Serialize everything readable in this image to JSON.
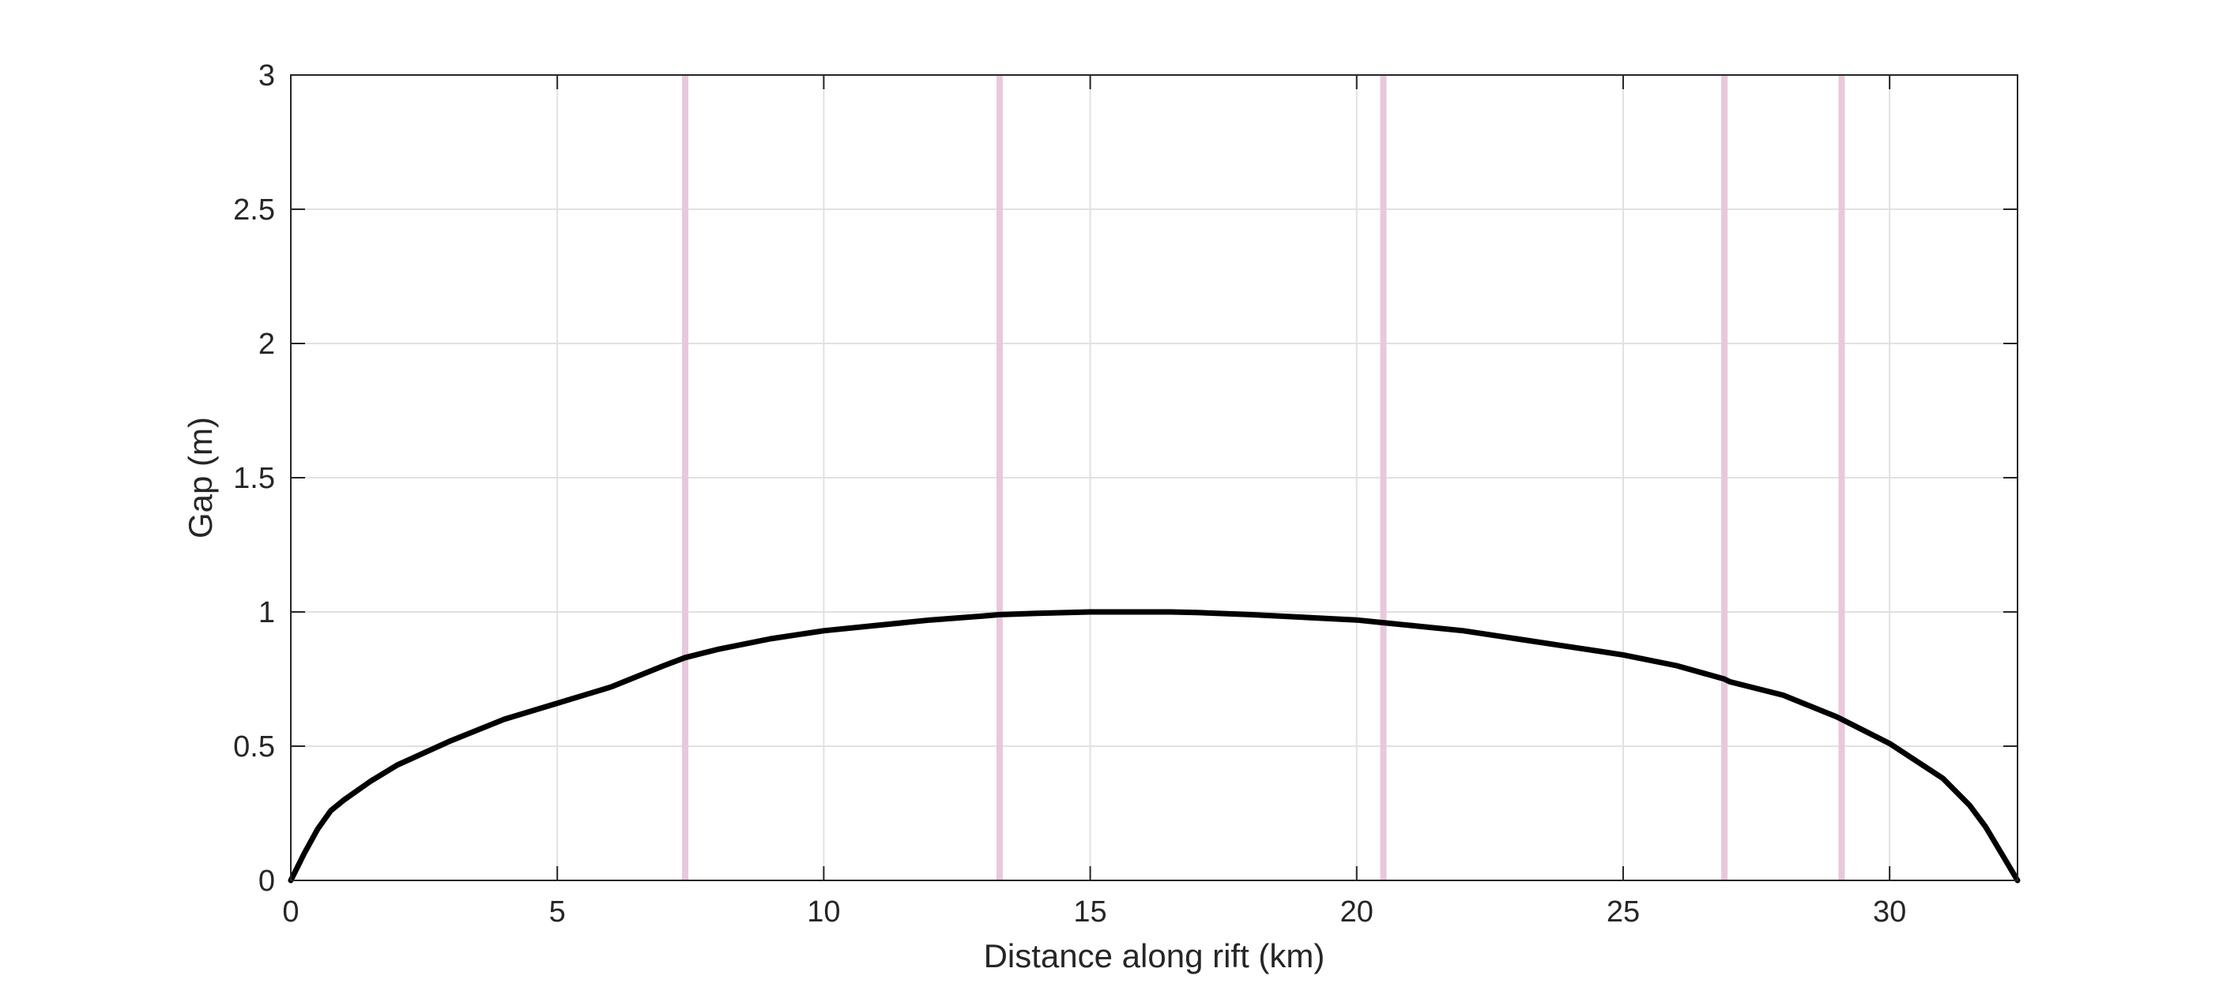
{
  "chart_data": {
    "type": "line",
    "title": "",
    "xlabel": "Distance along rift (km)",
    "ylabel": "Gap (m)",
    "xlim": [
      0,
      32.4
    ],
    "ylim": [
      0,
      3
    ],
    "xticks": [
      0,
      5,
      10,
      15,
      20,
      25,
      30
    ],
    "yticks": [
      0,
      0.5,
      1,
      1.5,
      2,
      2.5,
      3
    ],
    "xtick_labels": [
      "0",
      "5",
      "10",
      "15",
      "20",
      "25",
      "30"
    ],
    "ytick_labels": [
      "0",
      "0.5",
      "1",
      "1.5",
      "2",
      "2.5",
      "3"
    ],
    "grid": true,
    "legend": "none",
    "series": [
      {
        "color": "#000000",
        "x": [
          0,
          0.25,
          0.5,
          0.75,
          1,
          1.5,
          2,
          3,
          4,
          5,
          6,
          7,
          7.4,
          8,
          9,
          10,
          11,
          12,
          13,
          13.3,
          14,
          15,
          16,
          16.5,
          17,
          18,
          19,
          20,
          20.5,
          21,
          22,
          23,
          24,
          25,
          26,
          26.9,
          27,
          28,
          29,
          29.1,
          30,
          31,
          31.5,
          31.8,
          32.1,
          32.4
        ],
        "y": [
          0,
          0.1,
          0.19,
          0.26,
          0.3,
          0.37,
          0.43,
          0.52,
          0.6,
          0.66,
          0.72,
          0.8,
          0.83,
          0.86,
          0.9,
          0.93,
          0.95,
          0.97,
          0.985,
          0.99,
          0.995,
          1.0,
          1.0,
          1.0,
          0.998,
          0.99,
          0.98,
          0.97,
          0.96,
          0.95,
          0.93,
          0.9,
          0.87,
          0.84,
          0.8,
          0.75,
          0.74,
          0.69,
          0.61,
          0.6,
          0.51,
          0.38,
          0.28,
          0.2,
          0.1,
          0
        ]
      }
    ],
    "vertical_lines": {
      "color": "#e8c8dc",
      "x": [
        7.4,
        13.3,
        20.5,
        26.9,
        29.1
      ]
    }
  }
}
